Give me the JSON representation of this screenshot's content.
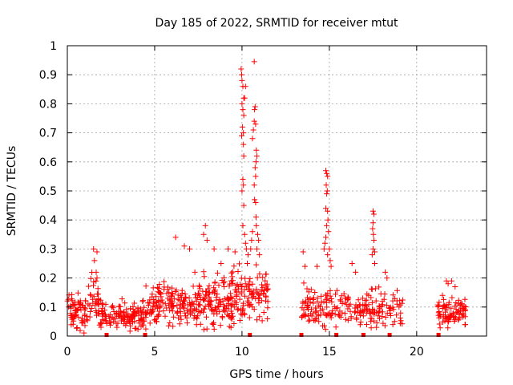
{
  "chart_data": {
    "type": "scatter",
    "title": "Day 185 of 2022, SRMTID for receiver mtut",
    "xlabel": "GPS time / hours",
    "ylabel": "SRMTID / TECUs",
    "xlim": [
      0,
      24
    ],
    "ylim": [
      0,
      1
    ],
    "x_ticks": [
      0,
      5,
      10,
      15,
      20
    ],
    "x_tick_labels": [
      "0",
      "5",
      "10",
      "15",
      "20"
    ],
    "y_ticks": [
      0,
      0.1,
      0.2,
      0.3,
      0.4,
      0.5,
      0.6,
      0.7,
      0.8,
      0.9,
      1
    ],
    "y_tick_labels": [
      "0",
      "0.1",
      "0.2",
      "0.3",
      "0.4",
      "0.5",
      "0.6",
      "0.7",
      "0.8",
      "0.9",
      "1"
    ],
    "grid": true,
    "marker": "plus",
    "series_color": "#ff0000",
    "clusters": [
      {
        "x_range": [
          0.0,
          1.2
        ],
        "y_mean": 0.08,
        "y_spread": 0.06,
        "n": 70
      },
      {
        "x_range": [
          1.2,
          1.9
        ],
        "y_mean": 0.13,
        "y_spread": 0.08,
        "n": 35
      },
      {
        "x_range": [
          1.9,
          4.5
        ],
        "y_mean": 0.07,
        "y_spread": 0.05,
        "n": 140
      },
      {
        "x_range": [
          4.5,
          7.5
        ],
        "y_mean": 0.11,
        "y_spread": 0.07,
        "n": 160
      },
      {
        "x_range": [
          7.5,
          9.5
        ],
        "y_mean": 0.12,
        "y_spread": 0.09,
        "n": 130
      },
      {
        "x_range": [
          9.5,
          11.5
        ],
        "y_mean": 0.15,
        "y_spread": 0.09,
        "n": 110
      },
      {
        "x_range": [
          13.4,
          16.0
        ],
        "y_mean": 0.1,
        "y_spread": 0.07,
        "n": 110
      },
      {
        "x_range": [
          16.0,
          19.2
        ],
        "y_mean": 0.09,
        "y_spread": 0.07,
        "n": 120
      },
      {
        "x_range": [
          21.2,
          22.8
        ],
        "y_mean": 0.08,
        "y_spread": 0.05,
        "n": 90
      }
    ],
    "points": [
      [
        1.5,
        0.3
      ],
      [
        1.7,
        0.29
      ],
      [
        1.55,
        0.26
      ],
      [
        1.65,
        0.22
      ],
      [
        1.7,
        0.2
      ],
      [
        6.2,
        0.34
      ],
      [
        6.7,
        0.31
      ],
      [
        7.0,
        0.3
      ],
      [
        7.3,
        0.22
      ],
      [
        7.9,
        0.38
      ],
      [
        7.8,
        0.35
      ],
      [
        8.0,
        0.33
      ],
      [
        8.4,
        0.3
      ],
      [
        9.2,
        0.3
      ],
      [
        9.6,
        0.29
      ],
      [
        8.8,
        0.25
      ],
      [
        9.95,
        0.92
      ],
      [
        9.98,
        0.9
      ],
      [
        10.0,
        0.88
      ],
      [
        10.05,
        0.86
      ],
      [
        10.1,
        0.82
      ],
      [
        10.0,
        0.8
      ],
      [
        10.05,
        0.78
      ],
      [
        10.1,
        0.76
      ],
      [
        10.02,
        0.72
      ],
      [
        9.98,
        0.69
      ],
      [
        10.08,
        0.7
      ],
      [
        10.15,
        0.82
      ],
      [
        10.2,
        0.86
      ],
      [
        10.08,
        0.66
      ],
      [
        10.1,
        0.62
      ],
      [
        10.05,
        0.54
      ],
      [
        10.08,
        0.52
      ],
      [
        10.0,
        0.5
      ],
      [
        10.1,
        0.45
      ],
      [
        10.05,
        0.38
      ],
      [
        10.15,
        0.35
      ],
      [
        10.2,
        0.32
      ],
      [
        10.3,
        0.25
      ],
      [
        10.35,
        0.28
      ],
      [
        10.25,
        0.3
      ],
      [
        10.7,
        0.945
      ],
      [
        10.75,
        0.79
      ],
      [
        10.72,
        0.78
      ],
      [
        10.7,
        0.74
      ],
      [
        10.78,
        0.73
      ],
      [
        10.65,
        0.71
      ],
      [
        10.6,
        0.68
      ],
      [
        10.82,
        0.64
      ],
      [
        10.85,
        0.62
      ],
      [
        10.8,
        0.6
      ],
      [
        10.75,
        0.58
      ],
      [
        10.78,
        0.55
      ],
      [
        10.7,
        0.52
      ],
      [
        10.72,
        0.47
      ],
      [
        10.78,
        0.46
      ],
      [
        10.8,
        0.41
      ],
      [
        10.82,
        0.38
      ],
      [
        10.9,
        0.35
      ],
      [
        10.95,
        0.33
      ],
      [
        10.85,
        0.3
      ],
      [
        11.0,
        0.28
      ],
      [
        10.6,
        0.36
      ],
      [
        10.55,
        0.33
      ],
      [
        10.5,
        0.3
      ],
      [
        13.5,
        0.29
      ],
      [
        13.6,
        0.24
      ],
      [
        14.3,
        0.24
      ],
      [
        14.8,
        0.57
      ],
      [
        14.85,
        0.56
      ],
      [
        14.9,
        0.55
      ],
      [
        14.82,
        0.52
      ],
      [
        14.88,
        0.5
      ],
      [
        14.85,
        0.49
      ],
      [
        14.8,
        0.44
      ],
      [
        14.9,
        0.43
      ],
      [
        14.92,
        0.4
      ],
      [
        14.85,
        0.38
      ],
      [
        14.95,
        0.36
      ],
      [
        14.8,
        0.34
      ],
      [
        14.75,
        0.32
      ],
      [
        14.7,
        0.3
      ],
      [
        15.0,
        0.3
      ],
      [
        14.9,
        0.28
      ],
      [
        15.05,
        0.26
      ],
      [
        15.1,
        0.24
      ],
      [
        17.5,
        0.43
      ],
      [
        17.55,
        0.42
      ],
      [
        17.5,
        0.39
      ],
      [
        17.48,
        0.37
      ],
      [
        17.52,
        0.35
      ],
      [
        17.55,
        0.33
      ],
      [
        17.5,
        0.3
      ],
      [
        17.6,
        0.29
      ],
      [
        17.45,
        0.28
      ],
      [
        17.6,
        0.25
      ],
      [
        16.3,
        0.25
      ],
      [
        16.5,
        0.22
      ],
      [
        18.2,
        0.22
      ],
      [
        18.3,
        0.2
      ],
      [
        21.7,
        0.19
      ],
      [
        21.8,
        0.18
      ],
      [
        22.0,
        0.19
      ],
      [
        22.2,
        0.17
      ]
    ],
    "zero_markers": [
      2.25,
      4.45,
      10.45,
      13.4,
      15.4,
      16.95,
      18.45,
      21.25
    ]
  }
}
